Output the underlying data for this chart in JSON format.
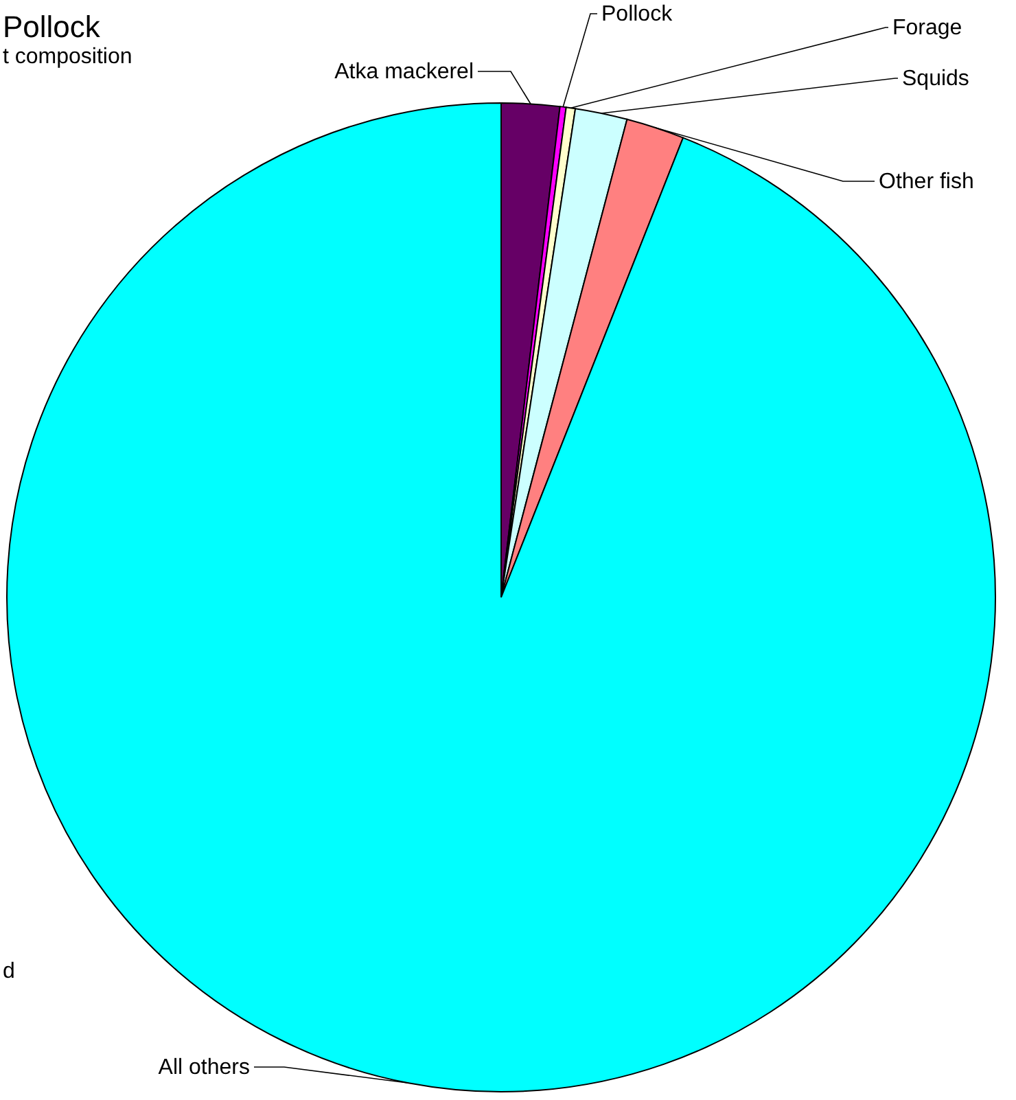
{
  "chart_data": {
    "type": "pie",
    "title": "Pollock",
    "subtitle": "t composition",
    "annotations": [
      "d"
    ],
    "categories": [
      "Atka mackerel",
      "Pollock",
      "Forage",
      "Squids",
      "Other fish",
      "All others"
    ],
    "values": [
      1.9,
      0.2,
      0.3,
      1.7,
      1.9,
      94.0
    ],
    "colors": [
      "#660066",
      "#ff00ff",
      "#ffffcc",
      "#ccffff",
      "#ff8080",
      "#00ffff"
    ]
  }
}
